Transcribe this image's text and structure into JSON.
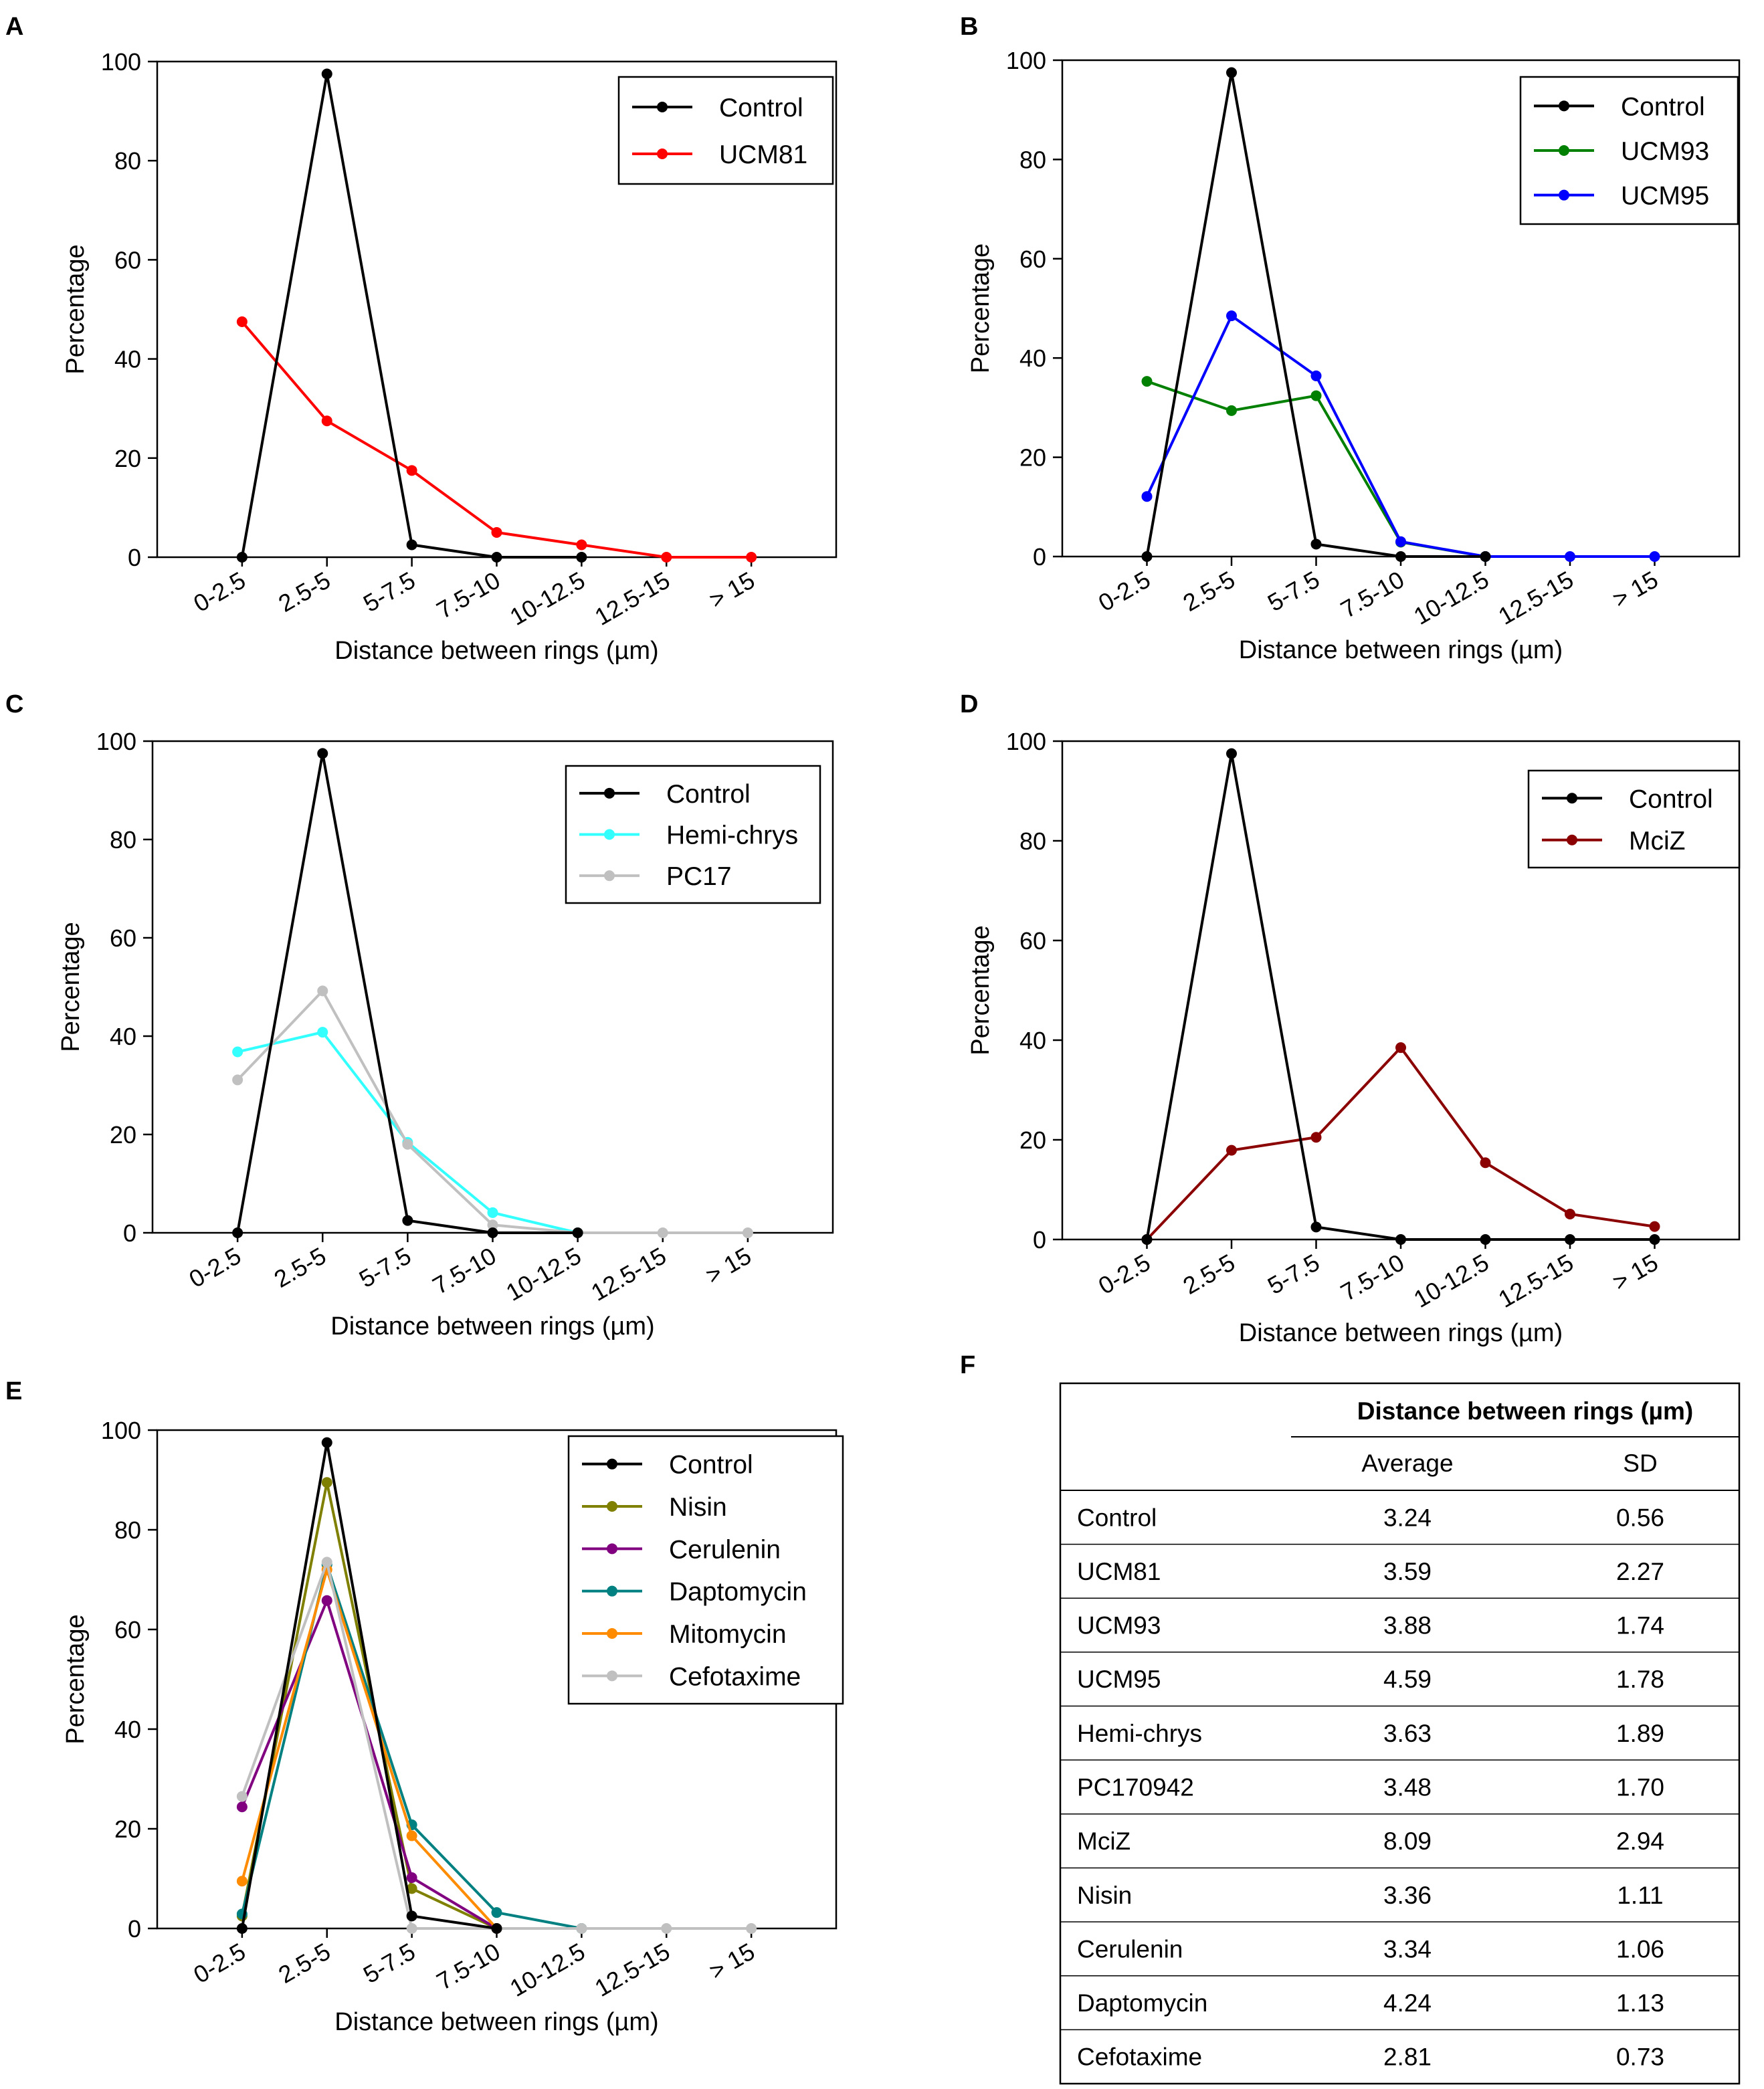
{
  "chart_data": [
    {
      "panel": "A",
      "type": "line",
      "xlabel": "Distance between rings (µm)",
      "ylabel": "Percentage",
      "ylim": [
        0,
        100
      ],
      "yticks": [
        0,
        20,
        40,
        60,
        80,
        100
      ],
      "categories": [
        "0-2.5",
        "2.5-5",
        "5-7.5",
        "7.5-10",
        "10-12.5",
        "12.5-15",
        "> 15"
      ],
      "legend_position": "top-right",
      "series": [
        {
          "name": "Control",
          "color": "#000000",
          "values": [
            0,
            97.5,
            2.5,
            0,
            0,
            null,
            null
          ]
        },
        {
          "name": "UCM81",
          "color": "#ff0000",
          "values": [
            47.5,
            27.5,
            17.5,
            5,
            2.5,
            0,
            0
          ]
        }
      ]
    },
    {
      "panel": "B",
      "type": "line",
      "xlabel": "Distance between rings (µm)",
      "ylabel": "Percentage",
      "ylim": [
        0,
        100
      ],
      "yticks": [
        0,
        20,
        40,
        60,
        80,
        100
      ],
      "categories": [
        "0-2.5",
        "2.5-5",
        "5-7.5",
        "7.5-10",
        "10-12.5",
        "12.5-15",
        "> 15"
      ],
      "legend_position": "top-right",
      "series": [
        {
          "name": "Control",
          "color": "#000000",
          "values": [
            0,
            97.5,
            2.5,
            0,
            0,
            null,
            null
          ]
        },
        {
          "name": "UCM93",
          "color": "#008000",
          "values": [
            35.3,
            29.4,
            32.4,
            2.9,
            0,
            null,
            null
          ]
        },
        {
          "name": "UCM95",
          "color": "#0000ff",
          "values": [
            12.1,
            48.5,
            36.4,
            3,
            0,
            0,
            0
          ]
        }
      ]
    },
    {
      "panel": "C",
      "type": "line",
      "xlabel": "Distance between rings (µm)",
      "ylabel": "Percentage",
      "ylim": [
        0,
        100
      ],
      "yticks": [
        0,
        20,
        40,
        60,
        80,
        100
      ],
      "categories": [
        "0-2.5",
        "2.5-5",
        "5-7.5",
        "7.5-10",
        "10-12.5",
        "12.5-15",
        "> 15"
      ],
      "legend_position": "top-right",
      "series": [
        {
          "name": "Control",
          "color": "#000000",
          "values": [
            0,
            97.5,
            2.5,
            0,
            0,
            null,
            null
          ]
        },
        {
          "name": "Hemi-chrys",
          "color": "#33ffff",
          "values": [
            36.8,
            40.8,
            18.4,
            4.1,
            0,
            null,
            null
          ]
        },
        {
          "name": "PC17",
          "color": "#c0c0c0",
          "values": [
            31.1,
            49.2,
            18,
            1.6,
            0,
            0,
            0
          ]
        }
      ]
    },
    {
      "panel": "D",
      "type": "line",
      "xlabel": "Distance between rings (µm)",
      "ylabel": "Percentage",
      "ylim": [
        0,
        100
      ],
      "yticks": [
        0,
        20,
        40,
        60,
        80,
        100
      ],
      "categories": [
        "0-2.5",
        "2.5-5",
        "5-7.5",
        "7.5-10",
        "10-12.5",
        "12.5-15",
        "> 15"
      ],
      "legend_position": "top-right",
      "series": [
        {
          "name": "Control",
          "color": "#000000",
          "values": [
            0,
            97.5,
            2.5,
            0,
            0,
            0,
            0
          ]
        },
        {
          "name": "MciZ",
          "color": "#8b0000",
          "values": [
            0,
            17.9,
            20.5,
            38.5,
            15.4,
            5.1,
            2.6
          ]
        }
      ]
    },
    {
      "panel": "E",
      "type": "line",
      "xlabel": "Distance between rings (µm)",
      "ylabel": "Percentage",
      "ylim": [
        0,
        100
      ],
      "yticks": [
        0,
        20,
        40,
        60,
        80,
        100
      ],
      "categories": [
        "0-2.5",
        "2.5-5",
        "5-7.5",
        "7.5-10",
        "10-12.5",
        "12.5-15",
        "> 15"
      ],
      "legend_position": "top-right",
      "series": [
        {
          "name": "Control",
          "color": "#000000",
          "values": [
            0,
            97.5,
            2.5,
            0,
            null,
            null,
            null
          ]
        },
        {
          "name": "Nisin",
          "color": "#808000",
          "values": [
            2.5,
            89.5,
            8,
            0,
            null,
            null,
            null
          ]
        },
        {
          "name": "Cerulenin",
          "color": "#800080",
          "values": [
            24.4,
            65.8,
            10.2,
            0,
            null,
            null,
            null
          ]
        },
        {
          "name": "Daptomycin",
          "color": "#008080",
          "values": [
            2.9,
            73,
            20.8,
            3.2,
            0,
            null,
            null
          ]
        },
        {
          "name": "Mitomycin",
          "color": "#ff8c00",
          "values": [
            9.5,
            72,
            18.6,
            0,
            null,
            null,
            null
          ]
        },
        {
          "name": "Cefotaxime",
          "color": "#c0c0c0",
          "values": [
            26.5,
            73.5,
            0,
            0,
            0,
            0,
            0
          ]
        }
      ]
    }
  ],
  "panel_letters": [
    "A",
    "B",
    "C",
    "D",
    "E",
    "F"
  ],
  "table": {
    "panel": "F",
    "group_header": "Distance between rings (µm)",
    "columns": [
      "Average",
      "SD"
    ],
    "rows": [
      {
        "name": "Control",
        "average": "3.24",
        "sd": "0.56"
      },
      {
        "name": "UCM81",
        "average": "3.59",
        "sd": "2.27"
      },
      {
        "name": "UCM93",
        "average": "3.88",
        "sd": "1.74"
      },
      {
        "name": "UCM95",
        "average": "4.59",
        "sd": "1.78"
      },
      {
        "name": "Hemi-chrys",
        "average": "3.63",
        "sd": "1.89"
      },
      {
        "name": "PC170942",
        "average": "3.48",
        "sd": "1.70"
      },
      {
        "name": "MciZ",
        "average": "8.09",
        "sd": "2.94"
      },
      {
        "name": "Nisin",
        "average": "3.36",
        "sd": "1.11"
      },
      {
        "name": "Cerulenin",
        "average": "3.34",
        "sd": "1.06"
      },
      {
        "name": "Daptomycin",
        "average": "4.24",
        "sd": "1.13"
      },
      {
        "name": "Cefotaxime",
        "average": "2.81",
        "sd": "0.73"
      }
    ]
  }
}
